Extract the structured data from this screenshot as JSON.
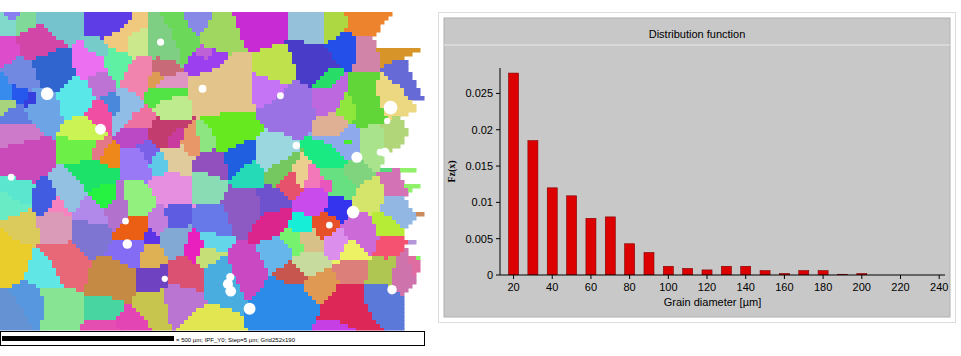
{
  "map": {
    "caption": "= 500 µm; IPF_Y0; Step=5 µm; Grid252x190"
  },
  "chart_data": {
    "type": "bar",
    "title": "Distribution function",
    "x_label": "Grain diameter [µm]",
    "y_label": "Fz(x)",
    "x": [
      20,
      30,
      40,
      50,
      60,
      70,
      80,
      90,
      100,
      110,
      120,
      130,
      140,
      150,
      160,
      170,
      180,
      190,
      200
    ],
    "values": [
      0.0278,
      0.0185,
      0.012,
      0.0109,
      0.0078,
      0.008,
      0.0043,
      0.0031,
      0.0012,
      0.0009,
      0.0007,
      0.0012,
      0.0012,
      0.0006,
      0.0002,
      0.0006,
      0.0006,
      0.0001,
      0.0002
    ],
    "color": "#dd0000",
    "xlim": [
      13,
      243
    ],
    "xticks": [
      20,
      40,
      60,
      80,
      100,
      120,
      140,
      160,
      180,
      200,
      220,
      240
    ],
    "ylim": [
      0,
      0.0285
    ],
    "yticks": [
      0,
      0.005,
      0.01,
      0.015,
      0.02,
      0.025
    ],
    "grid": false
  }
}
